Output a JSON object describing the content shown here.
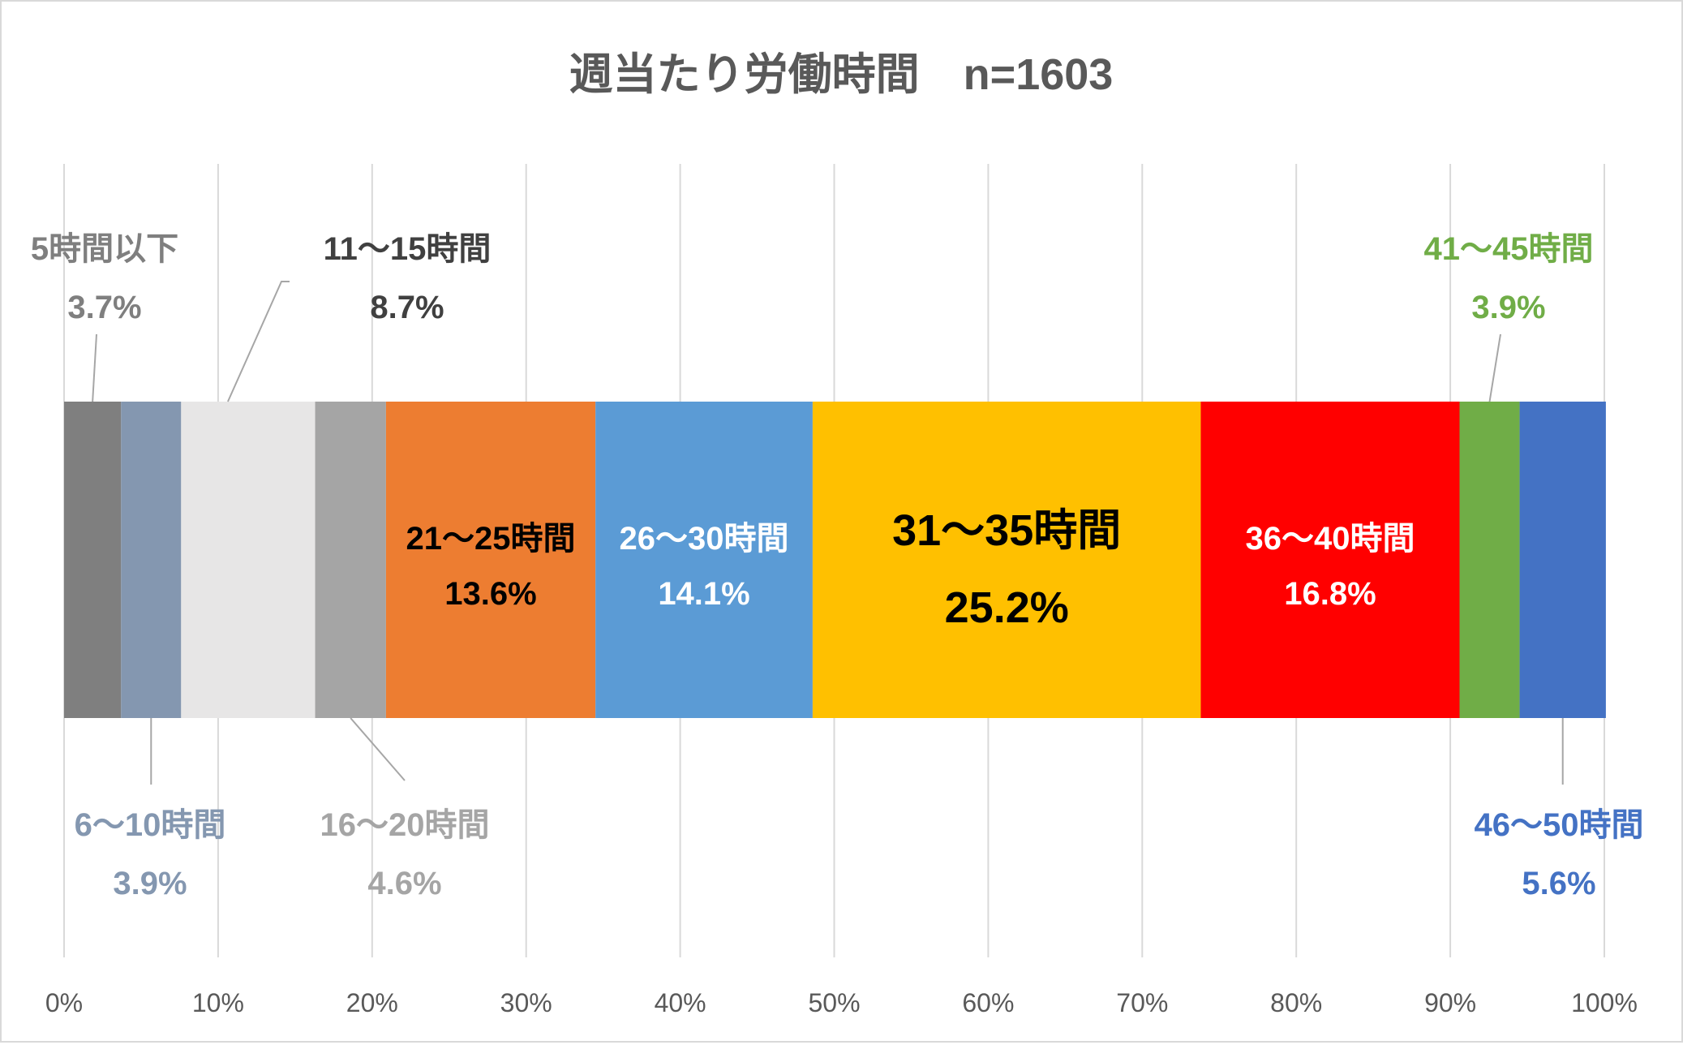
{
  "chart_data": {
    "type": "bar",
    "orientation": "horizontal-stacked-100",
    "title": "週当たり労働時間　n=1603",
    "xlim": [
      0,
      100
    ],
    "x_ticks": [
      "0%",
      "10%",
      "20%",
      "30%",
      "40%",
      "50%",
      "60%",
      "70%",
      "80%",
      "90%",
      "100%"
    ],
    "grid": true,
    "legend": "none",
    "series": [
      {
        "name": "5時間以下",
        "value": 3.7,
        "label": "3.7%",
        "color": "#7f7f7f",
        "label_color": "#7f7f7f",
        "placement": "above"
      },
      {
        "name": "6～10時間",
        "value": 3.9,
        "label": "3.9%",
        "color": "#8497b0",
        "label_color": "#8497b0",
        "placement": "below"
      },
      {
        "name": "11～15時間",
        "value": 8.7,
        "label": "8.7%",
        "color": "#e7e6e6",
        "label_color": "#404040",
        "placement": "above"
      },
      {
        "name": "16～20時間",
        "value": 4.6,
        "label": "4.6%",
        "color": "#a5a5a5",
        "label_color": "#a5a5a5",
        "placement": "below"
      },
      {
        "name": "21～25時間",
        "value": 13.6,
        "label": "13.6%",
        "color": "#ed7d31",
        "label_color": "#000000",
        "placement": "inside"
      },
      {
        "name": "26～30時間",
        "value": 14.1,
        "label": "14.1%",
        "color": "#5b9bd5",
        "label_color": "#ffffff",
        "placement": "inside"
      },
      {
        "name": "31～35時間",
        "value": 25.2,
        "label": "25.2%",
        "color": "#ffc000",
        "label_color": "#000000",
        "placement": "inside-large"
      },
      {
        "name": "36～40時間",
        "value": 16.8,
        "label": "16.8%",
        "color": "#ff0000",
        "label_color": "#ffffff",
        "placement": "inside"
      },
      {
        "name": "41～45時間",
        "value": 3.9,
        "label": "3.9%",
        "color": "#70ad47",
        "label_color": "#70ad47",
        "placement": "above"
      },
      {
        "name": "46～50時間",
        "value": 5.6,
        "label": "5.6%",
        "color": "#4472c4",
        "label_color": "#4472c4",
        "placement": "below"
      }
    ]
  }
}
